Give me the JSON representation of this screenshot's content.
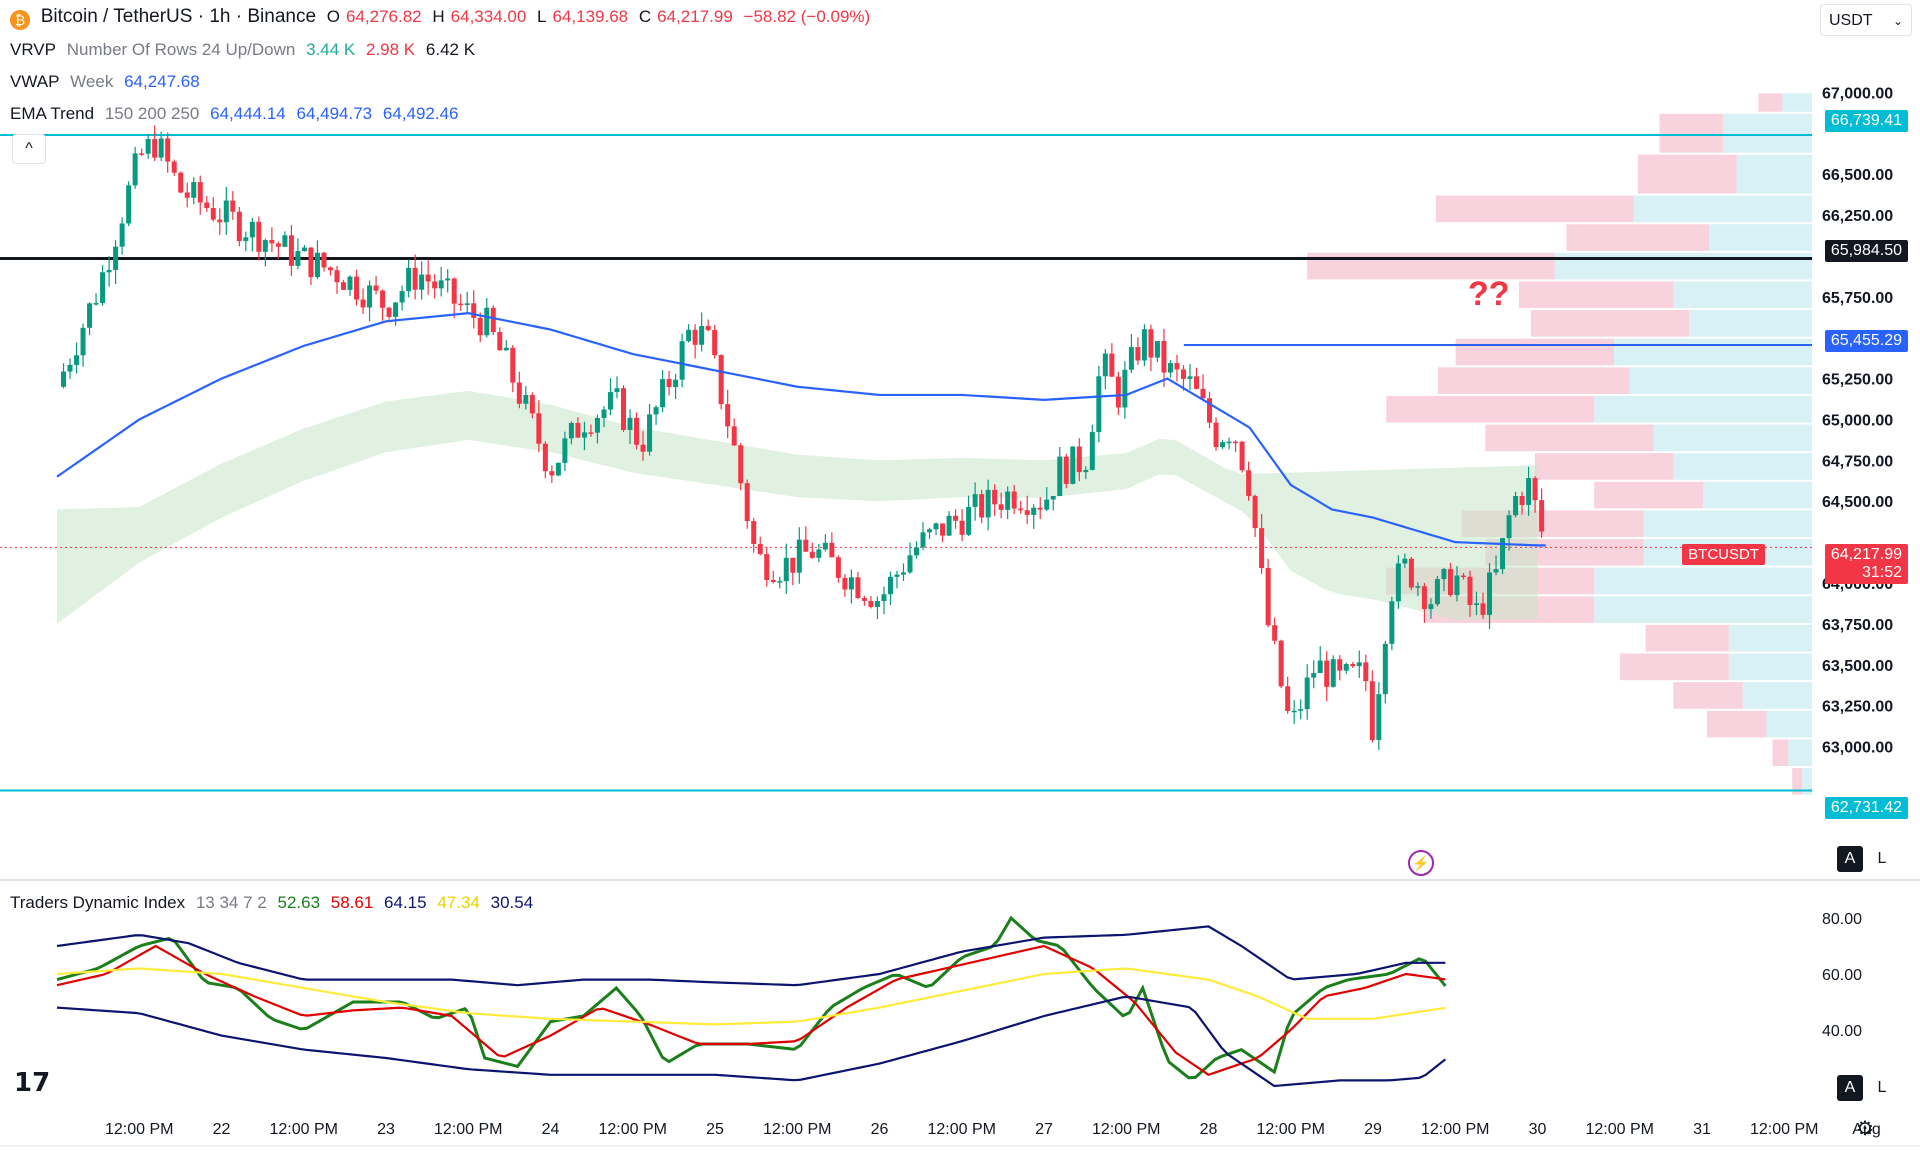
{
  "header": {
    "symbol_title": "Bitcoin / TetherUS · 1h · Binance",
    "open_label": "O",
    "open": "64,276.82",
    "high_label": "H",
    "high": "64,334.00",
    "low_label": "L",
    "low": "64,139.68",
    "close_label": "C",
    "close": "64,217.99",
    "change": "−58.82 (−0.09%)",
    "currency": "USDT"
  },
  "indicators": {
    "vrvp": {
      "name": "VRVP",
      "params": "Number Of Rows 24 Up/Down",
      "up": "3.44 K",
      "down": "2.98 K",
      "total": "6.42 K"
    },
    "vwap": {
      "name": "VWAP",
      "params": "Week",
      "value": "64,247.68"
    },
    "ema": {
      "name": "EMA Trend",
      "params": "150 200 250",
      "v1": "64,444.14",
      "v2": "64,494.73",
      "v3": "64,492.46"
    },
    "tdi": {
      "name": "Traders Dynamic Index",
      "params": "13 34 7 2",
      "v1": "52.63",
      "v2": "58.61",
      "v3": "64.15",
      "v4": "47.34",
      "v5": "30.54"
    }
  },
  "annotation": {
    "question": "??"
  },
  "price_tags": {
    "level_top": "66,739.41",
    "level_black": "65,984.50",
    "level_blue": "65,455.29",
    "symbol": "BTCUSDT",
    "current": "64,217.99",
    "countdown": "31:52",
    "level_bottom": "62,731.42"
  },
  "buttons": {
    "a": "A",
    "l": "L",
    "collapse": "^"
  },
  "colors": {
    "up": "#089981",
    "down": "#f23645",
    "ema": "#2962ff",
    "level": "#00bcd4",
    "tdi_green": "#1b7f1b",
    "tdi_red": "#e00000",
    "tdi_yellow": "#ffeb3b",
    "tdi_navy": "#0d1470",
    "vp_up": "#d7f1f5",
    "vp_down": "#f8d3de"
  },
  "chart_data": [
    {
      "type": "candlestick",
      "title": "Bitcoin / TetherUS · 1h · Binance",
      "ylim": [
        62600,
        67100
      ],
      "y_ticks": [
        "67,000.00",
        "66,500.00",
        "66,250.00",
        "65,750.00",
        "65,250.00",
        "65,000.00",
        "64,750.00",
        "64,500.00",
        "64,000.00",
        "63,750.00",
        "63,500.00",
        "63,250.00",
        "63,000.00"
      ],
      "x_ticks": [
        "12:00 PM",
        "22",
        "12:00 PM",
        "23",
        "12:00 PM",
        "24",
        "12:00 PM",
        "25",
        "12:00 PM",
        "26",
        "12:00 PM",
        "27",
        "12:00 PM",
        "28",
        "12:00 PM",
        "29",
        "12:00 PM",
        "30",
        "12:00 PM",
        "31",
        "12:00 PM",
        "Aug"
      ],
      "x_tick_days": [
        0.5,
        1,
        1.5,
        2,
        2.5,
        3,
        3.5,
        4,
        4.5,
        5,
        5.5,
        6,
        6.5,
        7,
        7.5,
        8,
        8.5,
        9,
        9.5,
        10,
        10.5,
        11
      ],
      "close_anchors": [
        [
          0,
          65200
        ],
        [
          0.25,
          65800
        ],
        [
          0.5,
          66600
        ],
        [
          0.6,
          66700
        ],
        [
          0.75,
          66400
        ],
        [
          1,
          66250
        ],
        [
          1.2,
          66150
        ],
        [
          1.45,
          66000
        ],
        [
          1.7,
          65900
        ],
        [
          2,
          65700
        ],
        [
          2.2,
          65900
        ],
        [
          2.5,
          65650
        ],
        [
          2.6,
          65600
        ],
        [
          2.75,
          65300
        ],
        [
          3,
          64700
        ],
        [
          3.2,
          65000
        ],
        [
          3.4,
          65100
        ],
        [
          3.55,
          64850
        ],
        [
          3.75,
          65300
        ],
        [
          3.85,
          65550
        ],
        [
          3.95,
          65500
        ],
        [
          4.1,
          64900
        ],
        [
          4.25,
          64150
        ],
        [
          4.4,
          64100
        ],
        [
          4.6,
          64200
        ],
        [
          4.8,
          64050
        ],
        [
          5,
          63900
        ],
        [
          5.2,
          64200
        ],
        [
          5.4,
          64350
        ],
        [
          5.6,
          64450
        ],
        [
          5.8,
          64550
        ],
        [
          6,
          64500
        ],
        [
          6.1,
          64700
        ],
        [
          6.25,
          64750
        ],
        [
          6.35,
          65350
        ],
        [
          6.45,
          65150
        ],
        [
          6.6,
          65500
        ],
        [
          6.75,
          65300
        ],
        [
          6.9,
          65200
        ],
        [
          7.05,
          64900
        ],
        [
          7.15,
          64950
        ],
        [
          7.25,
          64600
        ],
        [
          7.35,
          63800
        ],
        [
          7.5,
          63100
        ],
        [
          7.65,
          63500
        ],
        [
          7.8,
          63400
        ],
        [
          7.95,
          63450
        ],
        [
          8,
          63100
        ],
        [
          8.1,
          63950
        ],
        [
          8.2,
          64100
        ],
        [
          8.35,
          63900
        ],
        [
          8.5,
          64050
        ],
        [
          8.62,
          63800
        ],
        [
          8.75,
          64050
        ],
        [
          8.85,
          64500
        ],
        [
          8.95,
          64600
        ],
        [
          9.05,
          64217.99
        ]
      ],
      "ema_line": [
        [
          0,
          64650
        ],
        [
          0.5,
          65000
        ],
        [
          1,
          65250
        ],
        [
          1.5,
          65450
        ],
        [
          2,
          65600
        ],
        [
          2.5,
          65650
        ],
        [
          3,
          65550
        ],
        [
          3.5,
          65400
        ],
        [
          4,
          65300
        ],
        [
          4.5,
          65200
        ],
        [
          5,
          65150
        ],
        [
          5.5,
          65150
        ],
        [
          6,
          65120
        ],
        [
          6.5,
          65150
        ],
        [
          6.75,
          65250
        ],
        [
          7,
          65100
        ],
        [
          7.25,
          64950
        ],
        [
          7.5,
          64600
        ],
        [
          7.75,
          64450
        ],
        [
          8,
          64400
        ],
        [
          8.5,
          64250
        ],
        [
          9,
          64230
        ],
        [
          9.05,
          64230
        ]
      ],
      "levels": [
        66739.41,
        65984.5,
        65455.29,
        62731.42
      ],
      "current_price": 64217.99,
      "volume_profile_rows": [
        {
          "price_low": 66875,
          "price_high": 67000,
          "up": 0.15,
          "down": 0.12
        },
        {
          "price_low": 66625,
          "price_high": 66875,
          "up": 0.45,
          "down": 0.32
        },
        {
          "price_low": 66375,
          "price_high": 66625,
          "up": 0.38,
          "down": 0.5
        },
        {
          "price_low": 66200,
          "price_high": 66375,
          "up": 0.9,
          "down": 1.0
        },
        {
          "price_low": 66025,
          "price_high": 66200,
          "up": 0.52,
          "down": 0.72
        },
        {
          "price_low": 65850,
          "price_high": 66025,
          "up": 1.3,
          "down": 1.25
        },
        {
          "price_low": 65675,
          "price_high": 65850,
          "up": 0.7,
          "down": 0.78
        },
        {
          "price_low": 65500,
          "price_high": 65675,
          "up": 0.62,
          "down": 0.8
        },
        {
          "price_low": 65325,
          "price_high": 65500,
          "up": 1.0,
          "down": 0.8
        },
        {
          "price_low": 65150,
          "price_high": 65325,
          "up": 0.92,
          "down": 0.97
        },
        {
          "price_low": 64975,
          "price_high": 65150,
          "up": 1.1,
          "down": 1.05
        },
        {
          "price_low": 64800,
          "price_high": 64975,
          "up": 0.8,
          "down": 0.85
        },
        {
          "price_low": 64625,
          "price_high": 64800,
          "up": 0.7,
          "down": 0.7
        },
        {
          "price_low": 64450,
          "price_high": 64625,
          "up": 0.55,
          "down": 0.55
        },
        {
          "price_low": 64275,
          "price_high": 64450,
          "up": 0.85,
          "down": 0.92
        },
        {
          "price_low": 64100,
          "price_high": 64275,
          "up": 0.85,
          "down": 0.8
        },
        {
          "price_low": 63925,
          "price_high": 64100,
          "up": 1.1,
          "down": 1.05
        },
        {
          "price_low": 63750,
          "price_high": 63925,
          "up": 1.1,
          "down": 0.85
        },
        {
          "price_low": 63575,
          "price_high": 63750,
          "up": 0.42,
          "down": 0.42
        },
        {
          "price_low": 63400,
          "price_high": 63575,
          "up": 0.42,
          "down": 0.55
        },
        {
          "price_low": 63225,
          "price_high": 63400,
          "up": 0.35,
          "down": 0.35
        },
        {
          "price_low": 63050,
          "price_high": 63225,
          "up": 0.23,
          "down": 0.3
        },
        {
          "price_low": 62875,
          "price_high": 63050,
          "up": 0.12,
          "down": 0.08
        },
        {
          "price_low": 62700,
          "price_high": 62875,
          "up": 0.05,
          "down": 0.05
        }
      ]
    },
    {
      "type": "line",
      "title": "Traders Dynamic Index",
      "ylim": [
        15,
        90
      ],
      "y_ticks": [
        "80.00",
        "60.00",
        "40.00"
      ],
      "series": [
        {
          "color": "#1b7f1b",
          "points": [
            [
              0,
              58
            ],
            [
              0.25,
              62
            ],
            [
              0.5,
              70
            ],
            [
              0.7,
              73
            ],
            [
              0.9,
              57
            ],
            [
              1.1,
              55
            ],
            [
              1.3,
              44
            ],
            [
              1.5,
              40
            ],
            [
              1.8,
              50
            ],
            [
              2.1,
              50
            ],
            [
              2.3,
              44
            ],
            [
              2.5,
              48
            ],
            [
              2.6,
              30
            ],
            [
              2.8,
              27
            ],
            [
              3,
              43
            ],
            [
              3.2,
              45
            ],
            [
              3.4,
              55
            ],
            [
              3.55,
              45
            ],
            [
              3.7,
              28
            ],
            [
              3.9,
              35
            ],
            [
              4.2,
              35
            ],
            [
              4.5,
              33
            ],
            [
              4.7,
              48
            ],
            [
              4.9,
              55
            ],
            [
              5.1,
              60
            ],
            [
              5.3,
              55
            ],
            [
              5.5,
              66
            ],
            [
              5.7,
              70
            ],
            [
              5.8,
              80
            ],
            [
              5.95,
              72
            ],
            [
              6.1,
              70
            ],
            [
              6.3,
              55
            ],
            [
              6.5,
              44
            ],
            [
              6.6,
              55
            ],
            [
              6.75,
              29
            ],
            [
              6.9,
              22
            ],
            [
              7.05,
              30
            ],
            [
              7.2,
              33
            ],
            [
              7.4,
              25
            ],
            [
              7.5,
              45
            ],
            [
              7.7,
              55
            ],
            [
              7.85,
              58
            ],
            [
              8.1,
              60
            ],
            [
              8.3,
              66
            ],
            [
              8.45,
              55
            ]
          ]
        },
        {
          "color": "#e00000",
          "points": [
            [
              0,
              56
            ],
            [
              0.3,
              60
            ],
            [
              0.6,
              70
            ],
            [
              0.9,
              60
            ],
            [
              1.2,
              52
            ],
            [
              1.5,
              45
            ],
            [
              1.8,
              47
            ],
            [
              2.1,
              48
            ],
            [
              2.4,
              45
            ],
            [
              2.7,
              30
            ],
            [
              3,
              38
            ],
            [
              3.3,
              48
            ],
            [
              3.6,
              42
            ],
            [
              3.9,
              35
            ],
            [
              4.2,
              35
            ],
            [
              4.5,
              36
            ],
            [
              4.8,
              48
            ],
            [
              5.1,
              58
            ],
            [
              5.4,
              62
            ],
            [
              5.7,
              66
            ],
            [
              6,
              70
            ],
            [
              6.3,
              62
            ],
            [
              6.55,
              50
            ],
            [
              6.8,
              32
            ],
            [
              7,
              24
            ],
            [
              7.3,
              30
            ],
            [
              7.5,
              40
            ],
            [
              7.7,
              52
            ],
            [
              7.95,
              55
            ],
            [
              8.2,
              60
            ],
            [
              8.45,
              58
            ]
          ]
        },
        {
          "color": "#ffeb3b",
          "points": [
            [
              0,
              60
            ],
            [
              0.5,
              62
            ],
            [
              1,
              60
            ],
            [
              1.5,
              55
            ],
            [
              2,
              50
            ],
            [
              2.5,
              46
            ],
            [
              3,
              44
            ],
            [
              3.5,
              43
            ],
            [
              4,
              42
            ],
            [
              4.5,
              43
            ],
            [
              5,
              48
            ],
            [
              5.5,
              54
            ],
            [
              6,
              60
            ],
            [
              6.5,
              62
            ],
            [
              7,
              58
            ],
            [
              7.3,
              52
            ],
            [
              7.6,
              44
            ],
            [
              8,
              44
            ],
            [
              8.45,
              48
            ]
          ]
        },
        {
          "color": "#0d1470",
          "points": [
            [
              0,
              70
            ],
            [
              0.5,
              74
            ],
            [
              0.8,
              71
            ],
            [
              1.1,
              64
            ],
            [
              1.5,
              58
            ],
            [
              2,
              58
            ],
            [
              2.4,
              58
            ],
            [
              2.8,
              56
            ],
            [
              3.2,
              58
            ],
            [
              3.6,
              58
            ],
            [
              4,
              57
            ],
            [
              4.5,
              56
            ],
            [
              5,
              60
            ],
            [
              5.5,
              68
            ],
            [
              6,
              73
            ],
            [
              6.5,
              74
            ],
            [
              7,
              77
            ],
            [
              7.2,
              70
            ],
            [
              7.5,
              58
            ],
            [
              7.9,
              60
            ],
            [
              8.2,
              64
            ],
            [
              8.45,
              64
            ]
          ]
        },
        {
          "color": "#0d1470",
          "points": [
            [
              0,
              48
            ],
            [
              0.5,
              46
            ],
            [
              1,
              38
            ],
            [
              1.5,
              33
            ],
            [
              2,
              30
            ],
            [
              2.5,
              26
            ],
            [
              3,
              24
            ],
            [
              3.5,
              24
            ],
            [
              4,
              24
            ],
            [
              4.5,
              22
            ],
            [
              5,
              28
            ],
            [
              5.5,
              36
            ],
            [
              6,
              45
            ],
            [
              6.5,
              52
            ],
            [
              6.9,
              48
            ],
            [
              7.1,
              32
            ],
            [
              7.4,
              20
            ],
            [
              7.8,
              22
            ],
            [
              8.1,
              22
            ],
            [
              8.3,
              23
            ],
            [
              8.45,
              30
            ]
          ]
        }
      ]
    }
  ]
}
